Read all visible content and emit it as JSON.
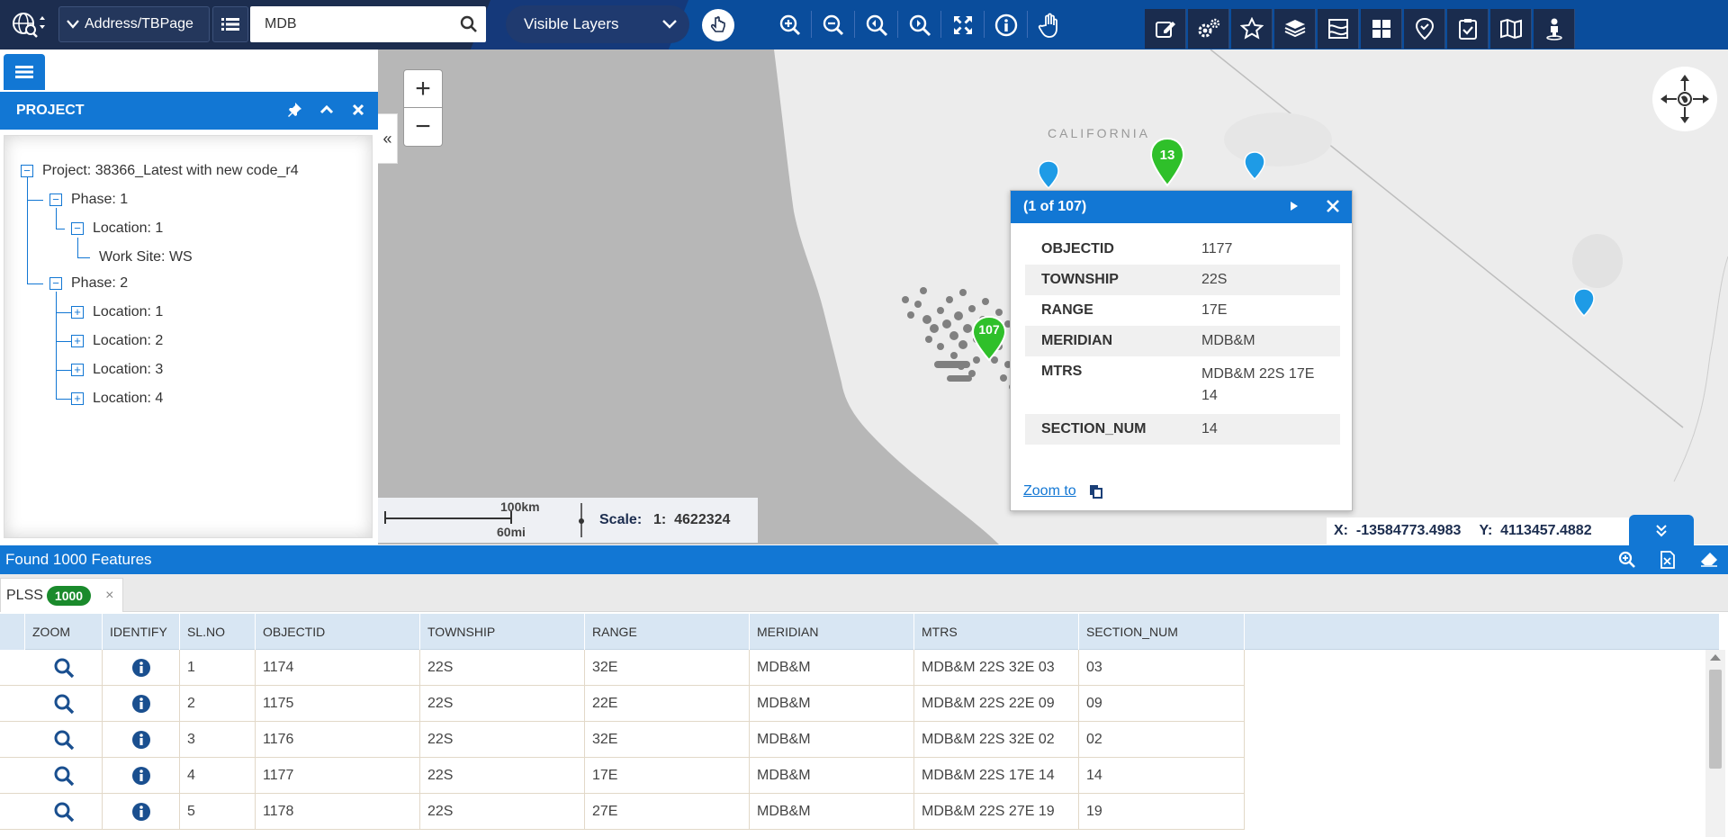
{
  "toolbar": {
    "address_label": "Address/TBPage",
    "search_value": "MDB",
    "search_placeholder": "",
    "layers_label": "Visible Layers"
  },
  "project": {
    "header": "PROJECT",
    "tree": {
      "project": "Project: 38366_Latest with new code_r4",
      "phase1": "Phase: 1",
      "phase1_location1": "Location: 1",
      "work_site": "Work Site: WS",
      "phase2": "Phase: 2",
      "phase2_location1": "Location: 1",
      "phase2_location2": "Location: 2",
      "phase2_location3": "Location: 3",
      "phase2_location4": "Location: 4"
    }
  },
  "map": {
    "region_label": "CALIFORNIA",
    "cluster_13": "13",
    "cluster_107": "107",
    "scale": {
      "km_label": "100km",
      "mi_label": "60mi",
      "scale_label": "Scale:",
      "scale_value": "1:  4622324"
    },
    "coords": {
      "x_label": "X:",
      "x_value": "-13584773.4983",
      "y_label": "Y:",
      "y_value": "4113457.4882"
    }
  },
  "popup": {
    "title": "(1 of 107)",
    "rows": [
      {
        "key": "OBJECTID",
        "value": "1177"
      },
      {
        "key": "TOWNSHIP",
        "value": "22S"
      },
      {
        "key": "RANGE",
        "value": "17E"
      },
      {
        "key": "MERIDIAN",
        "value": "MDB&M"
      },
      {
        "key": "MTRS",
        "value": "MDB&M 22S 17E 14"
      },
      {
        "key": "SECTION_NUM",
        "value": "14"
      }
    ],
    "zoom_to": "Zoom to"
  },
  "results": {
    "found_label": "Found 1000 Features",
    "tab_label": "PLSS",
    "tab_count": "1000",
    "columns": [
      "ZOOM",
      "IDENTIFY",
      "SL.NO",
      "OBJECTID",
      "TOWNSHIP",
      "RANGE",
      "MERIDIAN",
      "MTRS",
      "SECTION_NUM"
    ],
    "rows": [
      {
        "sl": "1",
        "objectid": "1174",
        "township": "22S",
        "range": "32E",
        "meridian": "MDB&M",
        "mtrs": "MDB&M 22S 32E 03",
        "section": "03"
      },
      {
        "sl": "2",
        "objectid": "1175",
        "township": "22S",
        "range": "22E",
        "meridian": "MDB&M",
        "mtrs": "MDB&M 22S 22E 09",
        "section": "09"
      },
      {
        "sl": "3",
        "objectid": "1176",
        "township": "22S",
        "range": "32E",
        "meridian": "MDB&M",
        "mtrs": "MDB&M 22S 32E 02",
        "section": "02"
      },
      {
        "sl": "4",
        "objectid": "1177",
        "township": "22S",
        "range": "17E",
        "meridian": "MDB&M",
        "mtrs": "MDB&M 22S 17E 14",
        "section": "14"
      },
      {
        "sl": "5",
        "objectid": "1178",
        "township": "22S",
        "range": "27E",
        "meridian": "MDB&M",
        "mtrs": "MDB&M 22S 27E 19",
        "section": "19"
      }
    ]
  },
  "colors": {
    "brand_blue": "#1277d4",
    "toolbar_dark": "#1c2d4f",
    "cluster_green": "#2fc02a",
    "marker_blue": "#1e9be6"
  }
}
